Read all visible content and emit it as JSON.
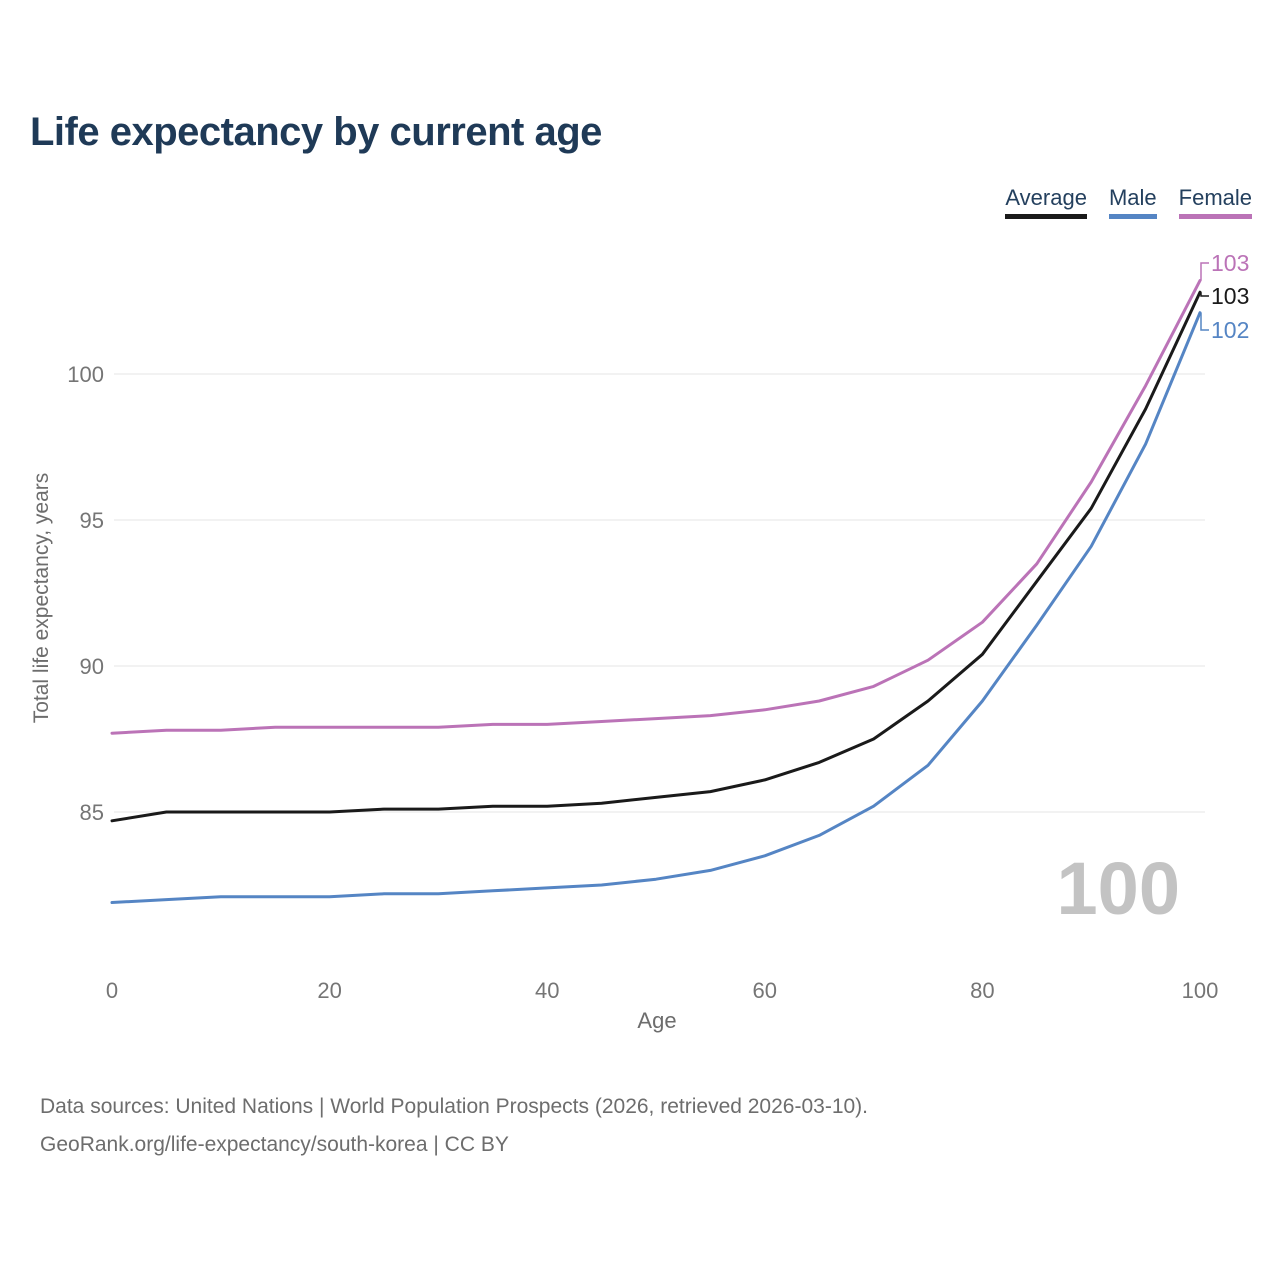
{
  "header": {
    "title": "Life expectancy by current age"
  },
  "chart_data": {
    "type": "line",
    "title": "Life expectancy by current age",
    "xlabel": "Age",
    "ylabel": "Total life expectancy, years",
    "x_range": [
      0,
      100
    ],
    "y_range": [
      81.5,
      103.5
    ],
    "x_ticks": [
      0,
      20,
      40,
      60,
      80,
      100
    ],
    "y_ticks": [
      85,
      90,
      95,
      100
    ],
    "grid": "horizontal",
    "legend_position": "top-right",
    "watermark": "100",
    "x": [
      0,
      5,
      10,
      15,
      20,
      25,
      30,
      35,
      40,
      45,
      50,
      55,
      60,
      65,
      70,
      75,
      80,
      85,
      90,
      95,
      100
    ],
    "series": [
      {
        "key": "average",
        "name": "Average",
        "color": "#1a1a1a",
        "end_label": "103",
        "values": [
          84.7,
          85.0,
          85.0,
          85.0,
          85.0,
          85.1,
          85.1,
          85.2,
          85.2,
          85.3,
          85.5,
          85.7,
          86.1,
          86.7,
          87.5,
          88.8,
          90.4,
          92.9,
          95.4,
          98.8,
          102.8
        ]
      },
      {
        "key": "male",
        "name": "Male",
        "color": "#5585c4",
        "end_label": "102",
        "values": [
          81.9,
          82.0,
          82.1,
          82.1,
          82.1,
          82.2,
          82.2,
          82.3,
          82.4,
          82.5,
          82.7,
          83.0,
          83.5,
          84.2,
          85.2,
          86.6,
          88.8,
          91.4,
          94.1,
          97.6,
          102.1
        ]
      },
      {
        "key": "female",
        "name": "Female",
        "color": "#bb73b7",
        "end_label": "103",
        "values": [
          87.7,
          87.8,
          87.8,
          87.9,
          87.9,
          87.9,
          87.9,
          88.0,
          88.0,
          88.1,
          88.2,
          88.3,
          88.5,
          88.8,
          89.3,
          90.2,
          91.5,
          93.5,
          96.3,
          99.6,
          103.2
        ]
      }
    ]
  },
  "footer": {
    "line1": "Data sources: United Nations | World Population Prospects (2026, retrieved 2026-03-10).",
    "line2": "GeoRank.org/life-expectancy/south-korea | CC BY"
  }
}
